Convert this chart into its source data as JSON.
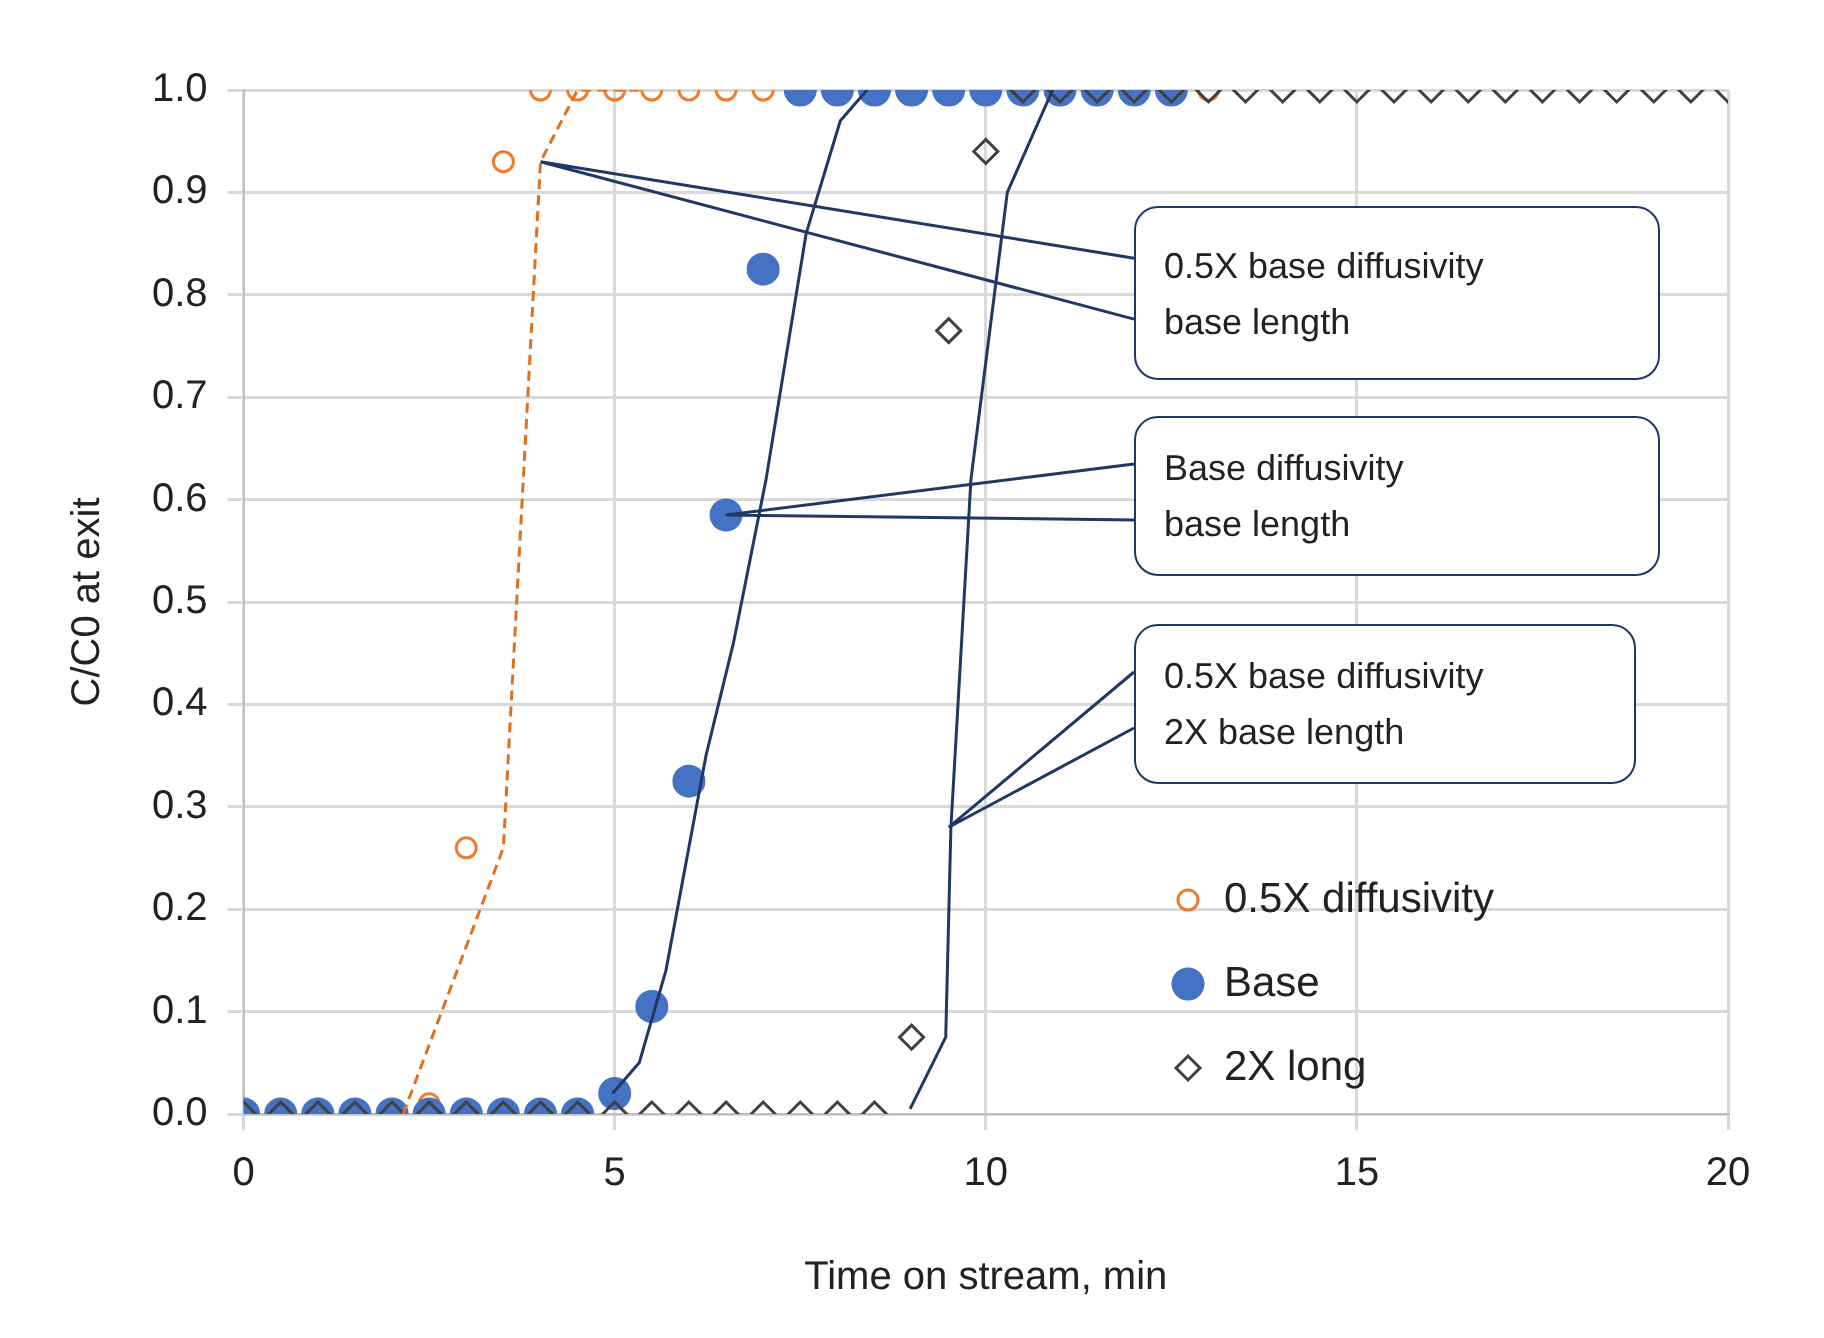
{
  "chart_data": {
    "type": "scatter",
    "xlabel": "Time on stream, min",
    "ylabel": "C/C0 at exit",
    "xlim": [
      0,
      20
    ],
    "xticks": [
      0,
      5,
      10,
      15,
      20
    ],
    "ylim": [
      0,
      1
    ],
    "yticks": [
      {
        "value": 0,
        "label": "0.0"
      },
      {
        "value": 0.1,
        "label": "0.1"
      },
      {
        "value": 0.2,
        "label": "0.2"
      },
      {
        "value": 0.3,
        "label": "0.3"
      },
      {
        "value": 0.4,
        "label": "0.4"
      },
      {
        "value": 0.5,
        "label": "0.5"
      },
      {
        "value": 0.6,
        "label": "0.6"
      },
      {
        "value": 0.7,
        "label": "0.7"
      },
      {
        "value": 0.8,
        "label": "0.8"
      },
      {
        "value": 0.9,
        "label": "0.9"
      },
      {
        "value": 1,
        "label": "1.0"
      }
    ],
    "grid": true,
    "legend": "bottom right",
    "series": [
      {
        "name": "0.5X diffusivity",
        "color": "#ed7d31",
        "marker": "circle",
        "x": [
          2.5,
          3,
          3.5,
          4,
          4.5,
          5,
          5.5,
          6,
          6.5,
          7,
          13
        ],
        "values": [
          0.01,
          0.26,
          0.93,
          1,
          1,
          1,
          1,
          1,
          1,
          1,
          1
        ]
      },
      {
        "name": "Base",
        "color": "#4472c4",
        "marker": "circle",
        "x": [
          0,
          0.5,
          1,
          1.5,
          2,
          2.5,
          3,
          3.5,
          4,
          4.5,
          5,
          5.5,
          6,
          6.5,
          7,
          7.5,
          8,
          8.5,
          9,
          9.5,
          10,
          10.5,
          11,
          11.5,
          12,
          12.5
        ],
        "values": [
          0,
          0,
          0,
          0,
          0,
          0,
          0,
          0,
          0,
          0,
          0.02,
          0.105,
          0.325,
          0.585,
          0.825,
          1,
          1,
          1,
          1,
          1,
          1,
          1,
          1,
          1,
          1,
          1
        ]
      },
      {
        "name": "2X long",
        "color": "#404040",
        "marker": "diamond",
        "x": [
          0,
          0.5,
          1,
          1.5,
          2,
          2.5,
          3,
          3.5,
          4,
          4.5,
          5,
          5.5,
          6,
          6.5,
          7,
          7.5,
          8,
          8.5,
          9,
          9.5,
          10,
          10.5,
          11,
          11.5,
          12,
          12.5,
          13,
          13.5,
          14,
          14.5,
          15,
          15.5,
          16,
          16.5,
          17,
          17.5,
          18,
          18.5,
          19,
          19.5,
          20
        ],
        "values": [
          0,
          0,
          0,
          0,
          0,
          0,
          0,
          0,
          0,
          0,
          0,
          0,
          0,
          0,
          0,
          0,
          0,
          0,
          0.075,
          0.765,
          0.94,
          1,
          1,
          1,
          1,
          1,
          1,
          1,
          1,
          1,
          1,
          1,
          1,
          1,
          1,
          1,
          1,
          1,
          1,
          1,
          1
        ]
      },
      {
        "type": "line",
        "color": "#e07020",
        "marker": "none",
        "line_style": "dashed",
        "x": [
          2.15,
          3.5,
          4.0,
          4.5,
          5.4
        ],
        "values": [
          0,
          0.26,
          0.93,
          1,
          1
        ]
      },
      {
        "type": "line",
        "color": "#1f3864",
        "marker": "none",
        "line_style": "solid",
        "x": [
          4.97,
          5.33,
          5.69,
          6.23,
          6.6,
          7.04,
          7.58,
          8.04,
          8.4
        ],
        "values": [
          0.02,
          0.05,
          0.14,
          0.35,
          0.46,
          0.62,
          0.86,
          0.97,
          1
        ]
      },
      {
        "type": "line",
        "color": "#1f3864",
        "marker": "none",
        "line_style": "solid",
        "x": [
          8.98,
          9.46,
          9.53,
          9.8,
          10.29,
          10.9
        ],
        "values": [
          0.005,
          0.075,
          0.28,
          0.62,
          0.9,
          1
        ]
      }
    ],
    "annotations": [
      {
        "text": "0.5X base diffusivity\nbase length",
        "x": 4,
        "y": 0.93
      },
      {
        "text": "Base diffusivity\nbase length",
        "x": 6.5,
        "y": 0.585
      },
      {
        "text": "0.5X base diffusivity\n2X base length",
        "x": 9.5,
        "y": 0.28
      }
    ]
  }
}
